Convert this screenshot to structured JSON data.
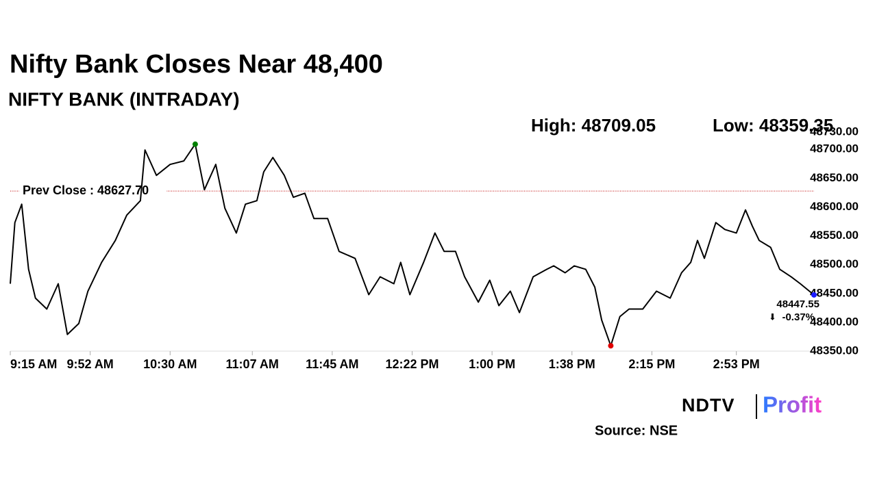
{
  "chart_data": {
    "type": "line",
    "title": "Nifty Bank Closes Near 48,400",
    "subtitle": "NIFTY BANK (INTRADAY)",
    "high_label": "High: 48709.05",
    "low_label": "Low: 48359.35",
    "prev_close": 48627.7,
    "prev_close_label": "Prev Close : 48627.70",
    "last_label": "48447.55",
    "change_arrow": "⬇",
    "change_label": "-0.37%",
    "logo_left": "NDTV",
    "logo_right": "Profit",
    "source": "Source: NSE",
    "series": [
      {
        "name": "NIFTY BANK",
        "color": "#000000",
        "x": [
          0,
          2,
          5,
          8,
          11,
          16,
          21,
          25,
          30,
          34,
          40,
          46,
          51,
          57,
          59,
          64,
          70,
          76,
          81,
          85,
          90,
          94,
          99,
          103,
          108,
          111,
          115,
          120,
          124,
          129,
          133,
          139,
          144,
          151,
          157,
          162,
          168,
          171,
          175,
          181,
          186,
          190,
          195,
          199,
          205,
          210,
          214,
          219,
          223,
          229,
          235,
          238,
          243,
          247,
          252,
          256,
          259,
          263,
          267,
          271,
          277,
          283,
          289,
          294,
          298,
          301,
          304,
          309,
          313,
          318,
          322,
          325,
          328,
          333,
          337,
          342,
          346,
          352
        ],
        "values": [
          48467,
          48573,
          48605,
          48492,
          48442,
          48423,
          48467,
          48379,
          48398,
          48454,
          48504,
          48542,
          48586,
          48611,
          48699,
          48655,
          48674,
          48680,
          48709.05,
          48630,
          48674,
          48598,
          48555,
          48605,
          48611,
          48661,
          48686,
          48655,
          48617,
          48624,
          48580,
          48580,
          48523,
          48511,
          48448,
          48479,
          48467,
          48504,
          48448,
          48504,
          48555,
          48523,
          48523,
          48479,
          48435,
          48473,
          48429,
          48454,
          48417,
          48479,
          48492,
          48498,
          48486,
          48498,
          48492,
          48461,
          48404,
          48359.35,
          48410,
          48423,
          48423,
          48454,
          48442,
          48486,
          48504,
          48542,
          48511,
          48573,
          48561,
          48555,
          48595,
          48567,
          48542,
          48530,
          48492,
          48479,
          48467,
          48447.55
        ]
      }
    ],
    "xlim": [
      0,
      352
    ],
    "xticks": [
      {
        "value": 0,
        "label": "9:15 AM"
      },
      {
        "value": 35,
        "label": "9:52 AM"
      },
      {
        "value": 70,
        "label": "10:30 AM"
      },
      {
        "value": 106,
        "label": "11:07 AM"
      },
      {
        "value": 141,
        "label": "11:45 AM"
      },
      {
        "value": 176,
        "label": "12:22 PM"
      },
      {
        "value": 211,
        "label": "1:00 PM"
      },
      {
        "value": 246,
        "label": "1:38 PM"
      },
      {
        "value": 281,
        "label": "2:15 PM"
      },
      {
        "value": 318,
        "label": "2:53 PM"
      }
    ],
    "ylim": [
      48350,
      48730
    ],
    "yticks": [
      {
        "value": 48350,
        "label": "48350.00"
      },
      {
        "value": 48400,
        "label": "48400.00"
      },
      {
        "value": 48450,
        "label": "48450.00"
      },
      {
        "value": 48500,
        "label": "48500.00"
      },
      {
        "value": 48550,
        "label": "48550.00"
      },
      {
        "value": 48600,
        "label": "48600.00"
      },
      {
        "value": 48650,
        "label": "48650.00"
      },
      {
        "value": 48700,
        "label": "48700.00"
      },
      {
        "value": 48730,
        "label": "48730.00"
      }
    ],
    "high_color": "#008000",
    "low_color": "#e00000",
    "last_color": "#1a1aff",
    "prev_close_color": "#c00000",
    "change_color": "#e00000"
  }
}
